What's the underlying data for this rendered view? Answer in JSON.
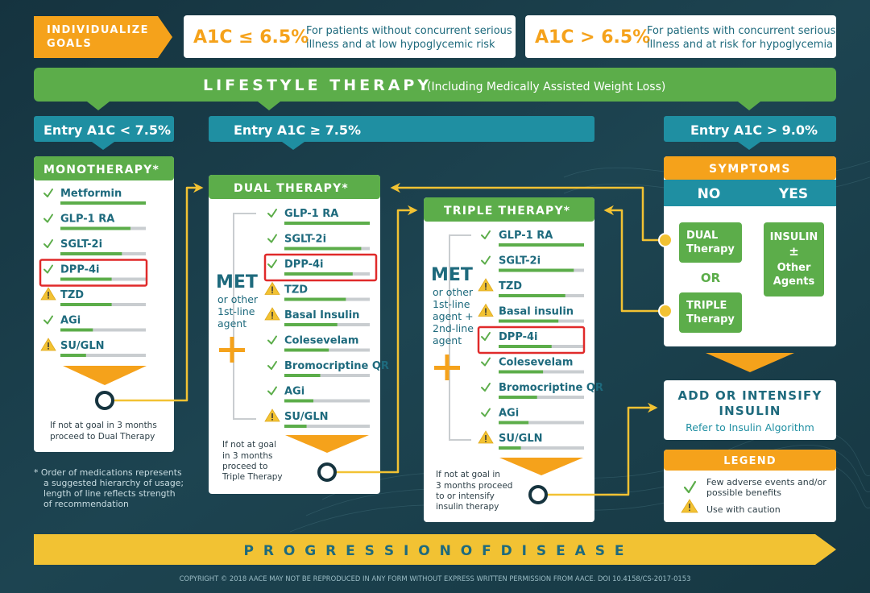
{
  "header": {
    "individualize": [
      "INDIVIDUALIZE",
      "GOALS"
    ],
    "goal_low": {
      "value": "A1C ≤ 6.5%",
      "desc": [
        "For patients without concurrent serious",
        "illness and at low hypoglycemic risk"
      ]
    },
    "goal_high": {
      "value": "A1C > 6.5%",
      "desc": [
        "For patients with concurrent serious",
        "illness and at risk for hypoglycemia"
      ]
    }
  },
  "lifestyle": {
    "title": "LIFESTYLE THERAPY",
    "subtitle": "(Including Medically Assisted Weight Loss)"
  },
  "entries": {
    "low": "Entry A1C < 7.5%",
    "mid": "Entry A1C ≥ 7.5%",
    "high": "Entry A1C > 9.0%"
  },
  "mono": {
    "title": "MONOTHERAPY*",
    "drugs": [
      {
        "name": "Metformin",
        "icon": "check",
        "strength": 1.0,
        "highlight": false
      },
      {
        "name": "GLP-1 RA",
        "icon": "check",
        "strength": 0.82,
        "highlight": false
      },
      {
        "name": "SGLT-2i",
        "icon": "check",
        "strength": 0.72,
        "highlight": false
      },
      {
        "name": "DPP-4i",
        "icon": "check",
        "strength": 0.6,
        "highlight": true
      },
      {
        "name": "TZD",
        "icon": "caution",
        "strength": 0.6,
        "highlight": false
      },
      {
        "name": "AGi",
        "icon": "check",
        "strength": 0.38,
        "highlight": false
      },
      {
        "name": "SU/GLN",
        "icon": "caution",
        "strength": 0.3,
        "highlight": false
      }
    ],
    "note": [
      "If not at goal in 3 months",
      "proceed to Dual Therapy"
    ]
  },
  "dual": {
    "title": "DUAL THERAPY*",
    "met": "MET",
    "met_desc": [
      "or other",
      "1st-line",
      "agent"
    ],
    "drugs": [
      {
        "name": "GLP-1 RA",
        "icon": "check",
        "strength": 1.0,
        "highlight": false
      },
      {
        "name": "SGLT-2i",
        "icon": "check",
        "strength": 0.9,
        "highlight": false
      },
      {
        "name": "DPP-4i",
        "icon": "check",
        "strength": 0.8,
        "highlight": true
      },
      {
        "name": "TZD",
        "icon": "caution",
        "strength": 0.72,
        "highlight": false
      },
      {
        "name": "Basal Insulin",
        "icon": "caution",
        "strength": 0.62,
        "highlight": false
      },
      {
        "name": "Colesevelam",
        "icon": "check",
        "strength": 0.52,
        "highlight": false
      },
      {
        "name": "Bromocriptine QR",
        "icon": "check",
        "strength": 0.42,
        "highlight": false
      },
      {
        "name": "AGi",
        "icon": "check",
        "strength": 0.34,
        "highlight": false
      },
      {
        "name": "SU/GLN",
        "icon": "caution",
        "strength": 0.26,
        "highlight": false
      }
    ],
    "note": [
      "If not at goal",
      "in 3 months",
      "proceed to",
      "Triple Therapy"
    ]
  },
  "triple": {
    "title": "TRIPLE THERAPY*",
    "met": "MET",
    "met_desc": [
      "or other",
      "1st-line",
      "agent +",
      "2nd-line",
      "agent"
    ],
    "drugs": [
      {
        "name": "GLP-1 RA",
        "icon": "check",
        "strength": 1.0,
        "highlight": false
      },
      {
        "name": "SGLT-2i",
        "icon": "check",
        "strength": 0.88,
        "highlight": false
      },
      {
        "name": "TZD",
        "icon": "caution",
        "strength": 0.78,
        "highlight": false
      },
      {
        "name": "Basal insulin",
        "icon": "caution",
        "strength": 0.7,
        "highlight": false
      },
      {
        "name": "DPP-4i",
        "icon": "check",
        "strength": 0.62,
        "highlight": true
      },
      {
        "name": "Colesevelam",
        "icon": "check",
        "strength": 0.52,
        "highlight": false
      },
      {
        "name": "Bromocriptine QR",
        "icon": "check",
        "strength": 0.45,
        "highlight": false
      },
      {
        "name": "AGi",
        "icon": "check",
        "strength": 0.35,
        "highlight": false
      },
      {
        "name": "SU/GLN",
        "icon": "caution",
        "strength": 0.26,
        "highlight": false
      }
    ],
    "note": [
      "If not at goal in",
      "3 months proceed",
      "to or intensify",
      "insulin therapy"
    ]
  },
  "symptoms": {
    "title": "SYMPTOMS",
    "no": "NO",
    "yes": "YES",
    "dual_btn": [
      "DUAL",
      "Therapy"
    ],
    "or": "OR",
    "triple_btn": [
      "TRIPLE",
      "Therapy"
    ],
    "insulin_btn": [
      "INSULIN",
      "±",
      "Other",
      "Agents"
    ]
  },
  "insulin": {
    "title": [
      "ADD OR INTENSIFY",
      "INSULIN"
    ],
    "subtitle": "Refer to Insulin Algorithm"
  },
  "legend": {
    "title": "LEGEND",
    "check_text": [
      "Few adverse events and/or",
      "possible benefits"
    ],
    "caution_text": "Use with caution"
  },
  "footnote": [
    "*  Order of medications represents",
    "a suggested hierarchy of usage;",
    "length of line reflects strength",
    "of recommendation"
  ],
  "progression": "P R O G R E S S I O N    O F    D I S E A S E",
  "copyright": "COPYRIGHT © 2018 AACE  MAY NOT BE REPRODUCED IN ANY FORM WITHOUT EXPRESS WRITTEN PERMISSION FROM AACE.  DOI 10.4158/CS-2017-0153",
  "colors": {
    "green": "#5cad4a",
    "teal": "#1f8fa2",
    "orange": "#f5a21b",
    "yellow": "#f2c233",
    "red": "#e02a2a",
    "teal_text": "#1e6a7d"
  }
}
